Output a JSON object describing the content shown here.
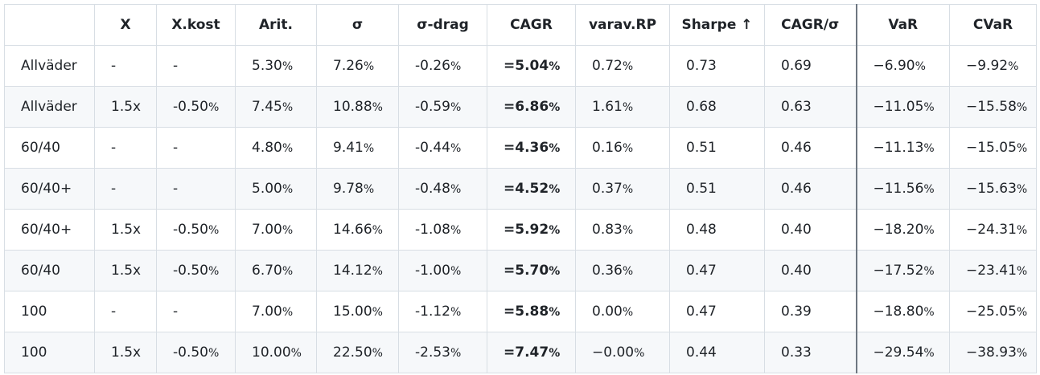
{
  "table": {
    "headers": [
      "",
      "X",
      "X.kost",
      "Arit.",
      "σ",
      "σ-drag",
      "CAGR",
      "varav.RP",
      "Sharpe ↑",
      "CAGR/σ",
      "VaR",
      "CVaR"
    ],
    "rows": [
      [
        "Allväder",
        "-",
        "-",
        "5.30%",
        "7.26%",
        "-0.26%",
        "=5.04%",
        "0.72%",
        "0.73",
        "0.69",
        "−6.90%",
        "−9.92%"
      ],
      [
        "Allväder",
        "1.5x",
        "-0.50%",
        "7.45%",
        "10.88%",
        "-0.59%",
        "=6.86%",
        "1.61%",
        "0.68",
        "0.63",
        "−11.05%",
        "−15.58%"
      ],
      [
        "60/40",
        "-",
        "-",
        "4.80%",
        "9.41%",
        "-0.44%",
        "=4.36%",
        "0.16%",
        "0.51",
        "0.46",
        "−11.13%",
        "−15.05%"
      ],
      [
        "60/40+",
        "-",
        "-",
        "5.00%",
        "9.78%",
        "-0.48%",
        "=4.52%",
        "0.37%",
        "0.51",
        "0.46",
        "−11.56%",
        "−15.63%"
      ],
      [
        "60/40+",
        "1.5x",
        "-0.50%",
        "7.00%",
        "14.66%",
        "-1.08%",
        "=5.92%",
        "0.83%",
        "0.48",
        "0.40",
        "−18.20%",
        "−24.31%"
      ],
      [
        "60/40",
        "1.5x",
        "-0.50%",
        "6.70%",
        "14.12%",
        "-1.00%",
        "=5.70%",
        "0.36%",
        "0.47",
        "0.40",
        "−17.52%",
        "−23.41%"
      ],
      [
        "100",
        "-",
        "-",
        "7.00%",
        "15.00%",
        "-1.12%",
        "=5.88%",
        "0.00%",
        "0.47",
        "0.39",
        "−18.80%",
        "−25.05%"
      ],
      [
        "100",
        "1.5x",
        "-0.50%",
        "10.00%",
        "22.50%",
        "-2.53%",
        "=7.47%",
        "−0.00%",
        "0.44",
        "0.33",
        "−29.54%",
        "−38.93%"
      ]
    ]
  },
  "colors": {
    "text": "#1f2328",
    "border": "#d8dee4",
    "stripe": "#f6f8fa",
    "separator": "#6e7781"
  }
}
